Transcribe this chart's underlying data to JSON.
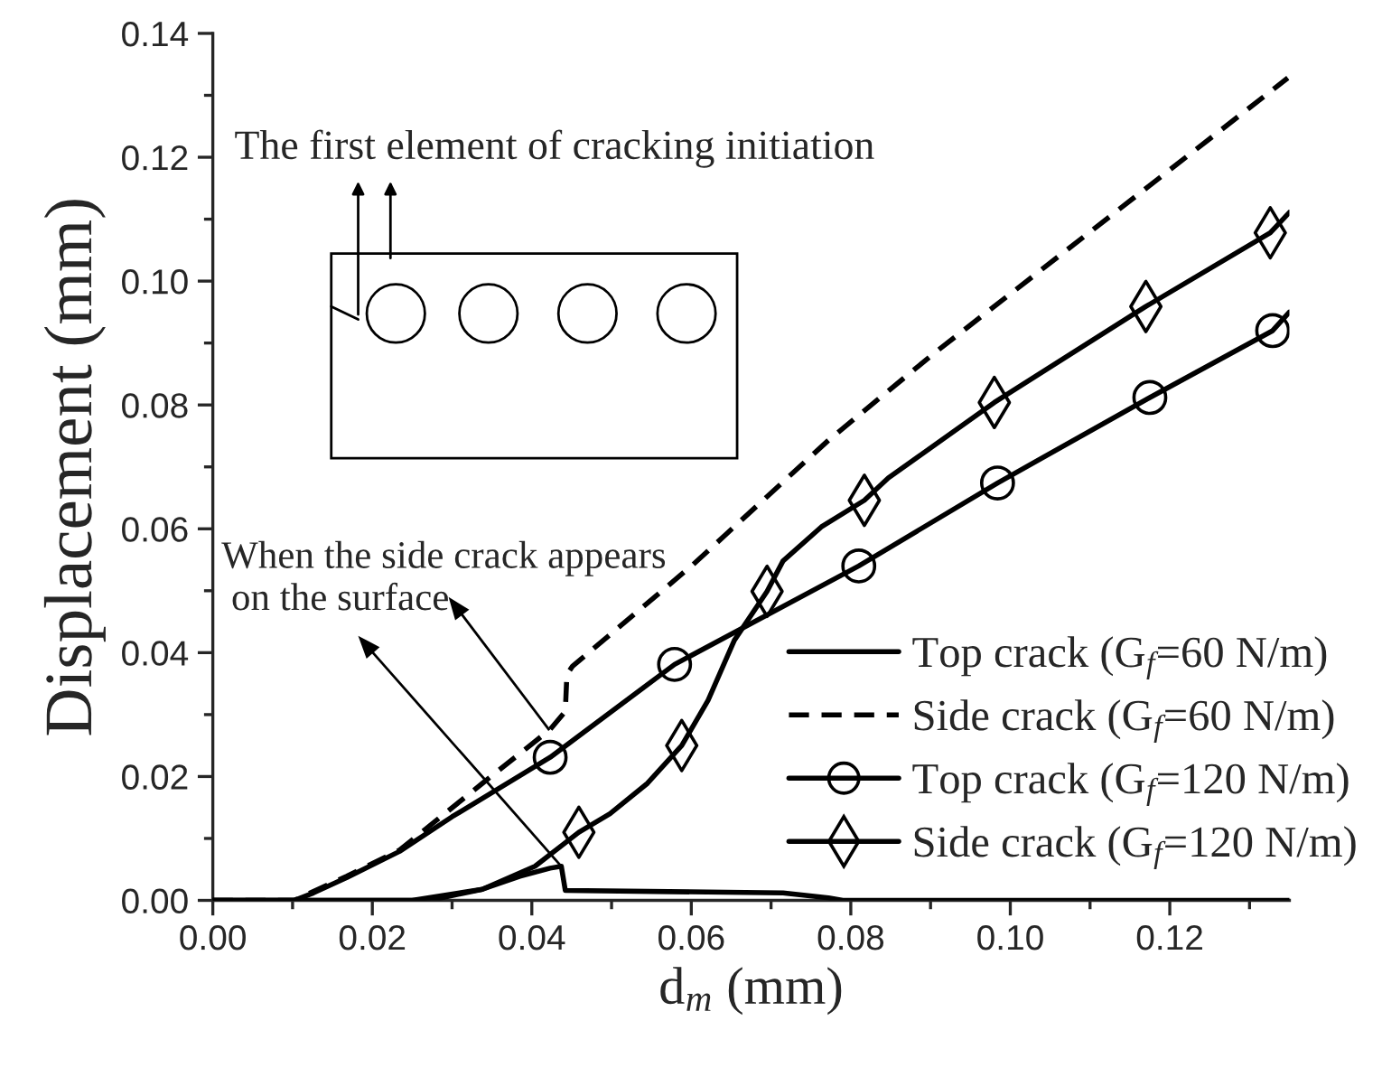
{
  "chart_data": {
    "type": "line",
    "xlabel": "d$_{m}$ (mm)",
    "ylabel": "Displacement (mm)",
    "xlim": [
      0,
      0.135
    ],
    "ylim": [
      0,
      0.14
    ],
    "xticks": [
      {
        "value": 0,
        "label": "0.00"
      },
      0.02,
      0.04,
      0.06,
      0.08,
      {
        "value": 0.1,
        "label": "0.10"
      },
      0.12
    ],
    "yticks": [
      {
        "value": 0,
        "label": "0.00"
      },
      0.02,
      0.04,
      0.06,
      0.08,
      {
        "value": 0.1,
        "label": "0.10"
      },
      0.12,
      0.14
    ],
    "legend": "bottom right",
    "grid": false,
    "series": [
      {
        "name": "Top crack (G$_{f}$=60 N/m)",
        "color": "#000000",
        "line_style": "solid",
        "marker": "none",
        "x": [
          0,
          0.0272,
          0.0338,
          0.0385,
          0.0423,
          0.0437,
          0.0442,
          0.0715,
          0.0772,
          0.079,
          0.135
        ],
        "values": [
          0,
          0,
          0.0018,
          0.0039,
          0.0052,
          0.0055,
          0.0016,
          0.0012,
          0.0004,
          0,
          0
        ]
      },
      {
        "name": "Side crack (G$_{f}$=60 N/m)",
        "color": "#000000",
        "line_style": "dashed",
        "marker": "none",
        "x": [
          0,
          0.0102,
          0.0168,
          0.0234,
          0.0338,
          0.0423,
          0.0442,
          0.0444,
          0.0451,
          0.0602,
          0.0772,
          0.0904,
          0.1348
        ],
        "values": [
          0,
          0,
          0.0039,
          0.0081,
          0.0189,
          0.0276,
          0.0305,
          0.0365,
          0.0378,
          0.0542,
          0.0743,
          0.0883,
          0.1328
        ]
      },
      {
        "name": "Top crack (G$_{f}$=120 N/m)",
        "color": "#000000",
        "line_style": "solid",
        "x": [
          0,
          0.0102,
          0.0126,
          0.0168,
          0.0234,
          0.03,
          0.0423,
          0.0579,
          0.081,
          0.0984,
          0.1175,
          0.1329,
          0.135
        ],
        "values": [
          0,
          0,
          0.0012,
          0.0037,
          0.0079,
          0.0135,
          0.0231,
          0.0381,
          0.054,
          0.0674,
          0.0812,
          0.092,
          0.095
        ]
      },
      {
        "type": "scatter",
        "color": "#000000",
        "marker": "circle",
        "x": [
          0.0423,
          0.0579,
          0.081,
          0.0984,
          0.1175,
          0.1329
        ],
        "values": [
          0.0231,
          0.0381,
          0.054,
          0.0674,
          0.0812,
          0.092
        ]
      },
      {
        "name": "Side crack (G$_{f}$=120 N/m)",
        "color": "#000000",
        "line_style": "solid",
        "x": [
          0,
          0.025,
          0.0338,
          0.0404,
          0.0459,
          0.0498,
          0.0545,
          0.0588,
          0.0621,
          0.0654,
          0.0695,
          0.0715,
          0.0763,
          0.0817,
          0.0847,
          0.098,
          0.117,
          0.1326,
          0.135
        ],
        "values": [
          0,
          0,
          0.0018,
          0.0055,
          0.011,
          0.014,
          0.0189,
          0.025,
          0.0323,
          0.042,
          0.0499,
          0.0548,
          0.0603,
          0.0646,
          0.0682,
          0.0804,
          0.0959,
          0.1078,
          0.1111
        ]
      },
      {
        "type": "scatter",
        "color": "#000000",
        "marker": "diamond",
        "x": [
          0.0459,
          0.0588,
          0.0695,
          0.0817,
          0.098,
          0.117,
          0.1326
        ],
        "values": [
          0.011,
          0.025,
          0.0499,
          0.0646,
          0.0804,
          0.0959,
          0.1078
        ]
      }
    ],
    "annotations": [
      "The first element of cracking initiation",
      "When the side crack appears on the surface"
    ]
  }
}
